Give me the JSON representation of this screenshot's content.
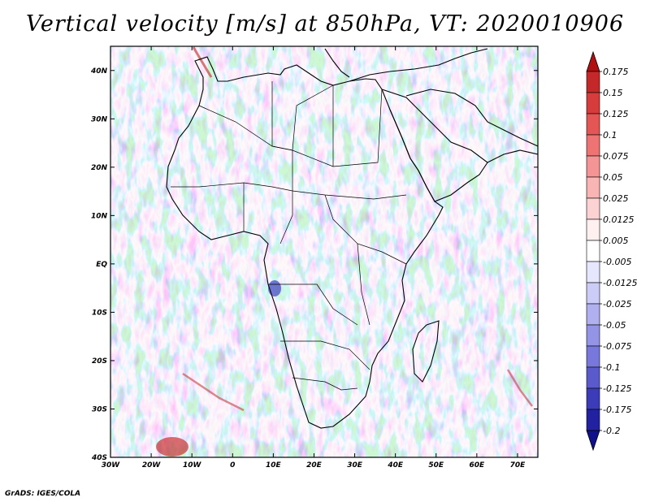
{
  "title": "Vertical velocity [m/s] at 850hPa, VT: 2020010906",
  "credit": "GrADS: IGES/COLA",
  "map": {
    "lat_ticks": [
      "40N",
      "30N",
      "20N",
      "10N",
      "EQ",
      "10S",
      "20S",
      "30S",
      "40S"
    ],
    "lon_ticks": [
      "30W",
      "20W",
      "10W",
      "0",
      "10E",
      "20E",
      "30E",
      "40E",
      "50E",
      "60E",
      "70E"
    ],
    "lon_range": [
      -30,
      75
    ],
    "lat_range": [
      -40,
      45
    ]
  },
  "colorbar": {
    "labels": [
      "0.175",
      "0.15",
      "0.125",
      "0.1",
      "0.075",
      "0.05",
      "0.025",
      "0.0125",
      "0.005",
      "-0.005",
      "-0.0125",
      "-0.025",
      "-0.05",
      "-0.075",
      "-0.1",
      "-0.125",
      "-0.175",
      "-0.2"
    ],
    "colors": [
      "#b01010",
      "#c42828",
      "#d63c3c",
      "#e45656",
      "#ee7474",
      "#f49494",
      "#f9b4b4",
      "#fcd2d2",
      "#fff0f0",
      "#ffffff",
      "#e6e6ff",
      "#ccccf8",
      "#b0b0f0",
      "#9494e6",
      "#7878dc",
      "#5a5acc",
      "#3c3cb8",
      "#2222a0",
      "#10108a"
    ]
  }
}
